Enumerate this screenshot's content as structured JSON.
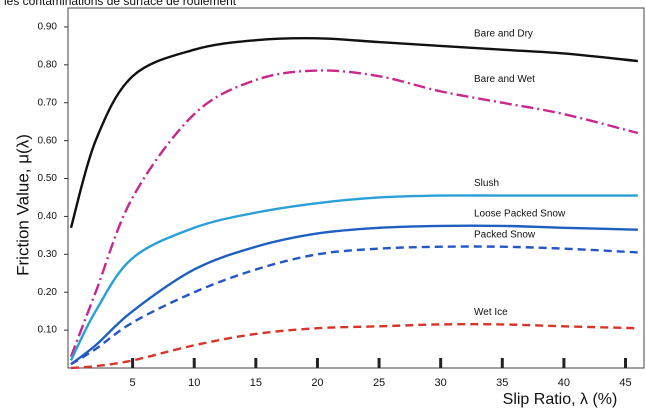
{
  "chart_data": {
    "type": "line",
    "title": "les contaminations de surface de roulement",
    "x_label": "Slip Ratio, λ (%)",
    "y_label": "Friction Value, μ(λ)",
    "x": [
      0,
      2,
      5,
      10,
      15,
      20,
      25,
      30,
      35,
      40,
      46
    ],
    "xlim": [
      0,
      46.5
    ],
    "xticks": [
      5,
      10,
      15,
      20,
      25,
      30,
      35,
      40,
      45
    ],
    "ylim": [
      0,
      0.95
    ],
    "yticks": [
      {
        "value": 0.1,
        "label": "0.10"
      },
      {
        "value": 0.2,
        "label": "0.20"
      },
      {
        "value": 0.3,
        "label": "0.30"
      },
      {
        "value": 0.4,
        "label": "0.40"
      },
      {
        "value": 0.5,
        "label": "0.50"
      },
      {
        "value": 0.6,
        "label": "0.60"
      },
      {
        "value": 0.7,
        "label": "0.70"
      },
      {
        "value": 0.8,
        "label": "0.80"
      },
      {
        "value": 0.9,
        "label": "0.90"
      }
    ],
    "series": [
      {
        "name": "Bare and Dry",
        "color": "#111111",
        "dash": "solid",
        "values": [
          0.37,
          0.6,
          0.77,
          0.84,
          0.865,
          0.87,
          0.86,
          0.85,
          0.84,
          0.83,
          0.81
        ]
      },
      {
        "name": "Bare and Wet",
        "color": "#c8288c",
        "dash": "dashdot",
        "values": [
          0.03,
          0.2,
          0.45,
          0.67,
          0.76,
          0.785,
          0.77,
          0.73,
          0.7,
          0.67,
          0.62
        ]
      },
      {
        "name": "Slush",
        "color": "#2a9fd8",
        "dash": "solid",
        "values": [
          0.02,
          0.15,
          0.29,
          0.37,
          0.41,
          0.435,
          0.45,
          0.455,
          0.455,
          0.455,
          0.455
        ]
      },
      {
        "name": "Loose Packed Snow",
        "color": "#1f5fc0",
        "dash": "solid",
        "values": [
          0.01,
          0.06,
          0.15,
          0.26,
          0.32,
          0.355,
          0.37,
          0.375,
          0.375,
          0.37,
          0.365
        ]
      },
      {
        "name": "Packed Snow",
        "color": "#2456c8",
        "dash": "dashed",
        "values": [
          0.01,
          0.05,
          0.12,
          0.2,
          0.26,
          0.3,
          0.315,
          0.32,
          0.32,
          0.315,
          0.305
        ]
      },
      {
        "name": "Wet Ice",
        "color": "#d8352a",
        "dash": "dashed",
        "values": [
          0,
          0.005,
          0.02,
          0.06,
          0.09,
          0.105,
          0.11,
          0.115,
          0.115,
          0.11,
          0.105
        ]
      }
    ]
  }
}
